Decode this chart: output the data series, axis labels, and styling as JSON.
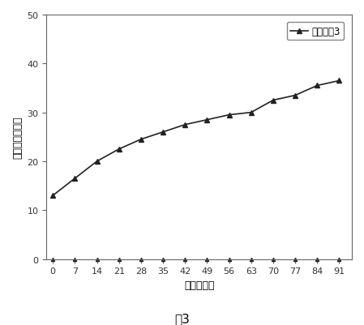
{
  "series": [
    {
      "label": "製剤番号3",
      "x": [
        0,
        7,
        14,
        21,
        28,
        35,
        42,
        49,
        56,
        63,
        70,
        77,
        84,
        91
      ],
      "y": [
        13.0,
        16.5,
        20.0,
        22.5,
        24.5,
        26.0,
        27.5,
        28.5,
        29.5,
        30.0,
        32.5,
        33.5,
        35.5,
        36.5
      ],
      "color": "#222222",
      "marker": "^",
      "markersize": 5,
      "linewidth": 1.2
    },
    {
      "label": null,
      "x": [
        0,
        7,
        14,
        21,
        28,
        35,
        42,
        49,
        56,
        63,
        70,
        77,
        84,
        91
      ],
      "y": [
        0.0,
        0.0,
        0.0,
        0.0,
        0.0,
        0.0,
        0.0,
        0.0,
        0.0,
        0.0,
        0.0,
        0.0,
        0.0,
        0.0
      ],
      "color": "#222222",
      "marker": "^",
      "markersize": 3,
      "linewidth": 0.7
    }
  ],
  "xlabel": "時間（日）",
  "ylabel": "累積放出（％）",
  "caption": "図3",
  "xlim": [
    -2,
    95
  ],
  "ylim": [
    0,
    50
  ],
  "xticks": [
    0,
    7,
    14,
    21,
    28,
    35,
    42,
    49,
    56,
    63,
    70,
    77,
    84,
    91
  ],
  "yticks": [
    0,
    10,
    20,
    30,
    40,
    50
  ],
  "background_color": "#ffffff",
  "figsize": [
    4.49,
    4.02
  ],
  "dpi": 100
}
